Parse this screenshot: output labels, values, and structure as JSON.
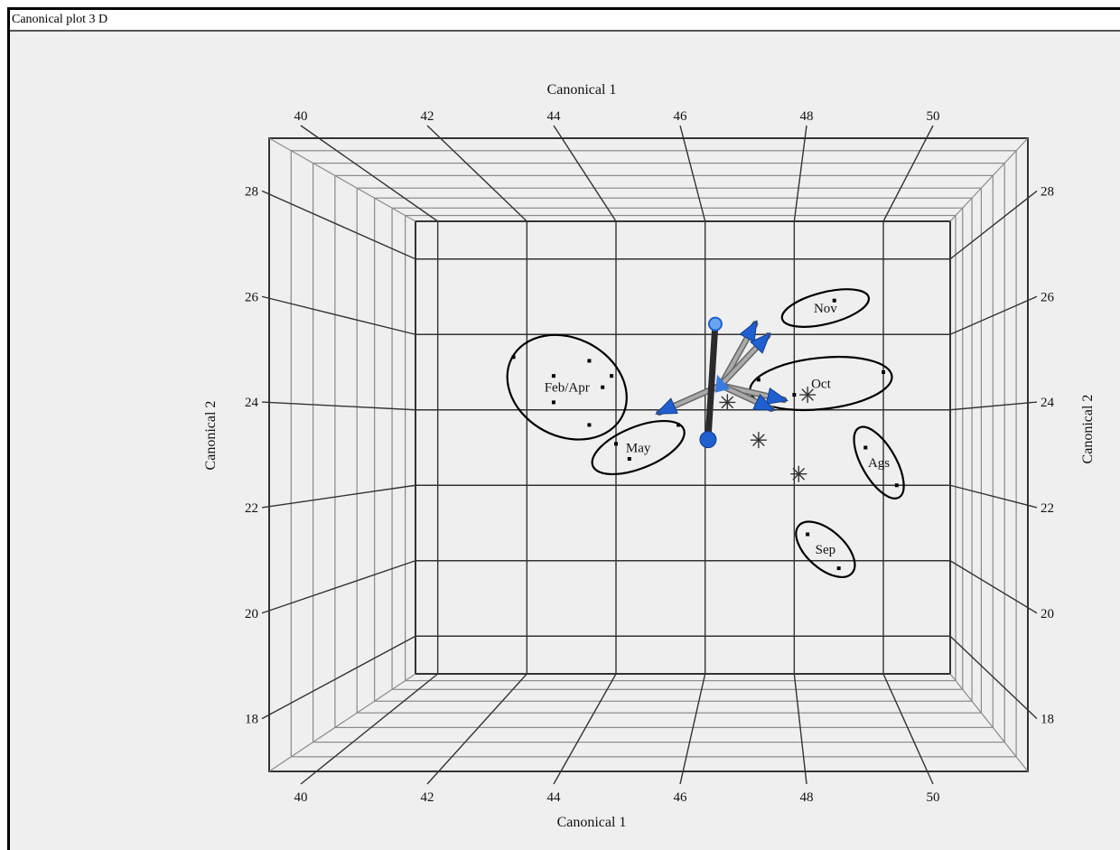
{
  "window": {
    "title": "Canonical plot 3 D"
  },
  "chart_data": {
    "type": "scatter",
    "title": "",
    "x_axis_label": "Canonical 1",
    "y_axis_label": "Canonical 2",
    "x_ticks": [
      "40",
      "42",
      "44",
      "46",
      "48",
      "50"
    ],
    "y_ticks": [
      "18",
      "20",
      "22",
      "24",
      "26",
      "28"
    ],
    "xlim": [
      39.5,
      51.5
    ],
    "ylim": [
      17,
      29
    ],
    "grid": true,
    "points": [
      {
        "x": 41.7,
        "y": 25.4
      },
      {
        "x": 42.6,
        "y": 24.9
      },
      {
        "x": 43.4,
        "y": 25.3
      },
      {
        "x": 43.9,
        "y": 24.9
      },
      {
        "x": 43.7,
        "y": 24.6
      },
      {
        "x": 42.6,
        "y": 24.2
      },
      {
        "x": 43.4,
        "y": 23.6
      },
      {
        "x": 44.0,
        "y": 23.1
      },
      {
        "x": 44.3,
        "y": 22.7
      },
      {
        "x": 45.4,
        "y": 23.6
      },
      {
        "x": 48.9,
        "y": 26.9
      },
      {
        "x": 47.2,
        "y": 24.8
      },
      {
        "x": 48.0,
        "y": 24.4
      },
      {
        "x": 50.0,
        "y": 25.0
      },
      {
        "x": 49.6,
        "y": 23.0
      },
      {
        "x": 50.3,
        "y": 22.0
      },
      {
        "x": 48.3,
        "y": 20.7
      },
      {
        "x": 49.0,
        "y": 19.8
      }
    ],
    "group_centroids": [
      {
        "x": 46.5,
        "y": 24.2
      },
      {
        "x": 48.3,
        "y": 24.4
      },
      {
        "x": 47.2,
        "y": 23.2
      },
      {
        "x": 48.1,
        "y": 22.3
      }
    ],
    "groups": [
      {
        "label": "Feb/Apr",
        "cx": 42.9,
        "cy": 24.6,
        "rx": 1.4,
        "ry": 1.3,
        "rot": 28
      },
      {
        "label": "May",
        "cx": 44.5,
        "cy": 23.0,
        "rx": 1.1,
        "ry": 0.55,
        "rot": -22
      },
      {
        "label": "Nov",
        "cx": 48.7,
        "cy": 26.7,
        "rx": 1.0,
        "ry": 0.42,
        "rot": -14
      },
      {
        "label": "Oct",
        "cx": 48.6,
        "cy": 24.7,
        "rx": 1.6,
        "ry": 0.68,
        "rot": -6
      },
      {
        "label": "Ags",
        "cx": 49.9,
        "cy": 22.6,
        "rx": 0.9,
        "ry": 0.45,
        "rot": 60
      },
      {
        "label": "Sep",
        "cx": 48.7,
        "cy": 20.3,
        "rx": 0.8,
        "ry": 0.5,
        "rot": 42
      }
    ],
    "biplot_rays": {
      "color_shaft": "#aaaaaa",
      "color_tip": "#1f5fd0",
      "color_dark": "#2a2a2a"
    },
    "colors": {
      "frame": "#333333",
      "ellipse": "#000000",
      "point": "#000000",
      "background": "#efefef"
    }
  }
}
